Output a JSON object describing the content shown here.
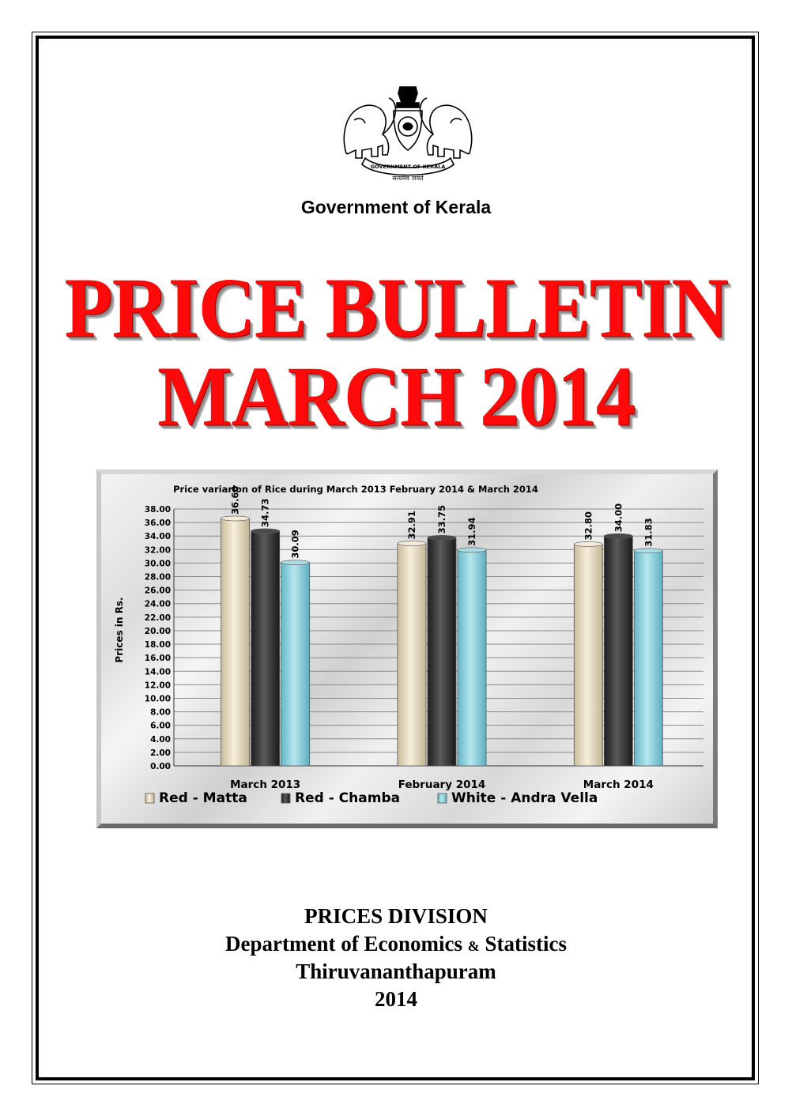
{
  "header": {
    "government": "Government of Kerala",
    "emblem_text": "GOVERNMENT OF KERALA",
    "emblem_motto": "सत्यमेव जयते"
  },
  "title": {
    "line1": "PRICE BULLETIN",
    "line2": "MARCH 2014",
    "color": "#ff0a0a"
  },
  "chart_data": {
    "type": "bar",
    "title": "Price variarion of Rice during March 2013 February 2014 & March  2014",
    "xlabel": "",
    "ylabel": "Prices in Rs.",
    "ylim": [
      0,
      38
    ],
    "ytick_step": 2,
    "categories": [
      "March 2013",
      "February 2014",
      "March 2014"
    ],
    "series": [
      {
        "name": "Red - Matta",
        "values": [
          36.6,
          32.91,
          32.8
        ],
        "labels": [
          "36.60",
          "32.91",
          "32.80"
        ],
        "color": "#e8dcc0"
      },
      {
        "name": "Red - Chamba",
        "values": [
          34.73,
          33.75,
          34.0
        ],
        "labels": [
          "34.73",
          "33.75",
          "34.00"
        ],
        "color": "#3a3a3a"
      },
      {
        "name": "White - Andra Vella",
        "values": [
          30.09,
          31.94,
          31.83
        ],
        "labels": [
          "30.09",
          "31.94",
          "31.83"
        ],
        "color": "#8fd0dc"
      }
    ],
    "grid": true,
    "legend": "bottom"
  },
  "footer": {
    "division": "PRICES DIVISION",
    "dept_part1": "Department of Economics",
    "dept_amp": "&",
    "dept_part2": "Statistics",
    "city": "Thiruvananthapuram",
    "year": "2014"
  }
}
